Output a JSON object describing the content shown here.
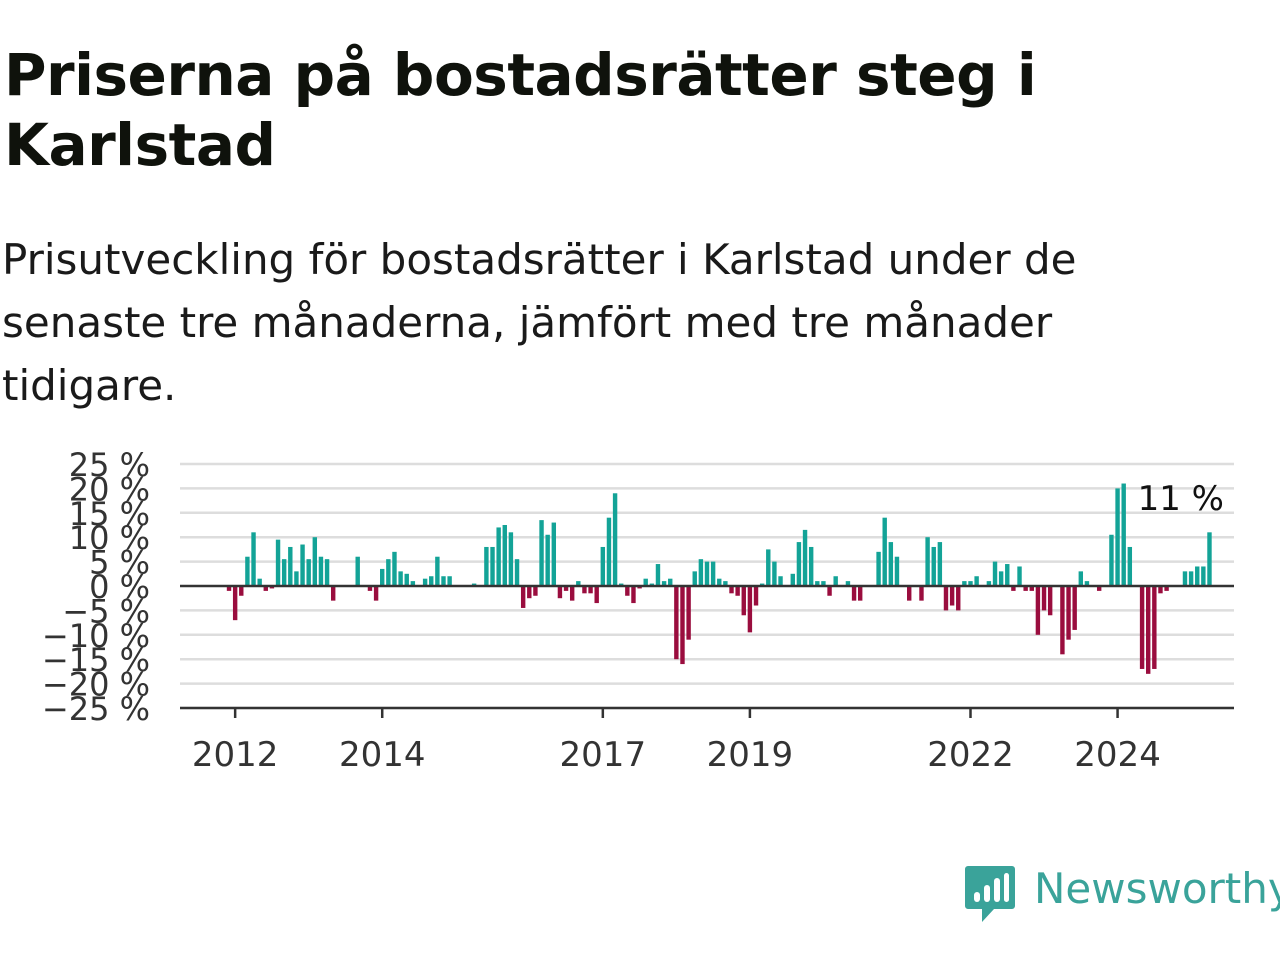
{
  "title": "Priserna på bostadsrätter steg i Karlstad",
  "subtitle": "Prisutveckling för bostadsrätter i Karlstad under de senaste tre månaderna, jämfört med tre månader tidigare.",
  "logo_text": "Newsworthy",
  "colors": {
    "positive": "#13a397",
    "negative": "#9a0d3e",
    "grid": "#dddddd",
    "axis": "#333333",
    "brand": "#3aa39a"
  },
  "chart_data": {
    "type": "bar",
    "ylim": [
      -25,
      25
    ],
    "yticks": [
      25,
      20,
      15,
      10,
      5,
      0,
      -5,
      -10,
      -15,
      -20,
      -25
    ],
    "ytick_labels": [
      "25 %",
      "20 %",
      "15 %",
      "10 %",
      "5 %",
      "0 %",
      "−5 %",
      "−10 %",
      "−15 %",
      "−20 %",
      "−25 %"
    ],
    "xtick_labels": [
      "2012",
      "2014",
      "2017",
      "2019",
      "2022",
      "2024"
    ],
    "xtick_dates": [
      "2012-01",
      "2014-01",
      "2017-01",
      "2019-01",
      "2022-01",
      "2024-01"
    ],
    "x_start": "2011-04",
    "x_end": "2025-08",
    "annotation": "11 %",
    "series": [
      {
        "start": "2011-12",
        "values": [
          -1,
          -7,
          -2,
          6,
          11,
          1.5,
          -1,
          -0.5,
          9.5,
          5.5,
          8,
          3,
          8.5,
          5.5,
          10,
          6,
          5.5,
          -3,
          0,
          0,
          0,
          6,
          0,
          -1,
          -3,
          3.5,
          5.5,
          7,
          3,
          2.5,
          1,
          0,
          1.5,
          2,
          6,
          2,
          2,
          0,
          0,
          0,
          0.5,
          0,
          8,
          8,
          12,
          12.5,
          11,
          5.5,
          -4.5,
          -2.5,
          -2,
          13.5,
          10.5,
          13,
          -2.5,
          -1,
          -3,
          1,
          -1.5,
          -1.5,
          -3.5,
          8,
          14,
          19,
          0.5,
          -2,
          -3.5,
          -0.5,
          1.5,
          0.5,
          4.5,
          1,
          1.5,
          -15,
          -16,
          -11,
          3,
          5.5,
          5,
          5,
          1.5,
          1,
          -1.5,
          -2,
          -6,
          -9.5,
          -4,
          0.5,
          7.5,
          5,
          2,
          0,
          2.5,
          9,
          11.5,
          8,
          1,
          1,
          -2,
          2,
          0,
          1,
          -3,
          -3,
          0,
          0,
          7,
          14,
          9,
          6,
          0,
          -3,
          0,
          -3,
          10,
          8,
          9,
          -5,
          -4,
          -5,
          1,
          1,
          2,
          0,
          1,
          5,
          3,
          4.5,
          -1,
          4,
          -1,
          -1,
          -10,
          -5,
          -6,
          0,
          -14,
          -11,
          -9,
          3,
          1,
          0,
          -1,
          0,
          10.5,
          20,
          21,
          8,
          0,
          -17,
          -18,
          -17,
          -1.5,
          -1,
          0,
          0,
          3,
          3,
          4,
          4,
          11
        ]
      }
    ]
  }
}
